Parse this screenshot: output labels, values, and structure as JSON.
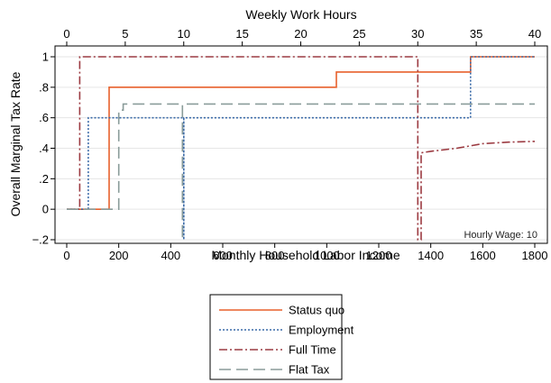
{
  "chart_data": {
    "type": "line",
    "title": "",
    "xlabel": "Monthly Household Labor Income",
    "x2label": "Weekly Work Hours",
    "ylabel": "Overall Marginal Tax Rate",
    "xlim": [
      0,
      1800
    ],
    "x2lim": [
      0,
      40
    ],
    "ylim": [
      -0.2,
      1
    ],
    "xticks": [
      0,
      200,
      400,
      600,
      800,
      1000,
      1200,
      1400,
      1600,
      1800
    ],
    "x2ticks": [
      0,
      5,
      10,
      15,
      20,
      25,
      30,
      35,
      40
    ],
    "yticks": [
      {
        "value": 1,
        "label": "1"
      },
      {
        "value": 0.8,
        "label": ".8"
      },
      {
        "value": 0.6,
        "label": ".6"
      },
      {
        "value": 0.4,
        "label": ".4"
      },
      {
        "value": 0.2,
        "label": ".2"
      },
      {
        "value": 0,
        "label": "0"
      },
      {
        "value": -0.2,
        "label": "−.2"
      }
    ],
    "grid": true,
    "legend_position": "bottom",
    "annotation": "Hourly Wage: 10",
    "series": [
      {
        "name": "Status quo",
        "color": "#e8612c",
        "dash": "solid",
        "x": [
          0,
          163,
          163,
          1037,
          1037,
          1553,
          1553,
          1800
        ],
        "y": [
          0,
          0,
          0.8,
          0.8,
          0.9,
          0.9,
          1,
          1
        ]
      },
      {
        "name": "Employment",
        "color": "#3a6aa8",
        "dash": "dot",
        "x": [
          0,
          83,
          83,
          450,
          450,
          450,
          450,
          1553,
          1553,
          1800
        ],
        "y": [
          0,
          0,
          0.6,
          0.6,
          -0.2,
          0.6,
          0.6,
          0.6,
          1,
          1
        ]
      },
      {
        "name": "Full Time",
        "color": "#9c3b42",
        "dash": "dashdot",
        "x": [
          0,
          50,
          50,
          1350,
          1350,
          1363,
          1363,
          1400,
          1500,
          1600,
          1700,
          1800
        ],
        "y": [
          0,
          0,
          1,
          1,
          -0.2,
          -0.2,
          0.37,
          0.38,
          0.4,
          0.43,
          0.44,
          0.445
        ]
      },
      {
        "name": "Flat Tax",
        "color": "#8a9c9a",
        "dash": "longdash",
        "x": [
          0,
          200,
          200,
          217,
          217,
          445,
          445,
          445,
          1800
        ],
        "y": [
          0,
          0,
          0.65,
          0.65,
          0.69,
          0.69,
          -0.2,
          0.69,
          0.69
        ]
      }
    ]
  }
}
